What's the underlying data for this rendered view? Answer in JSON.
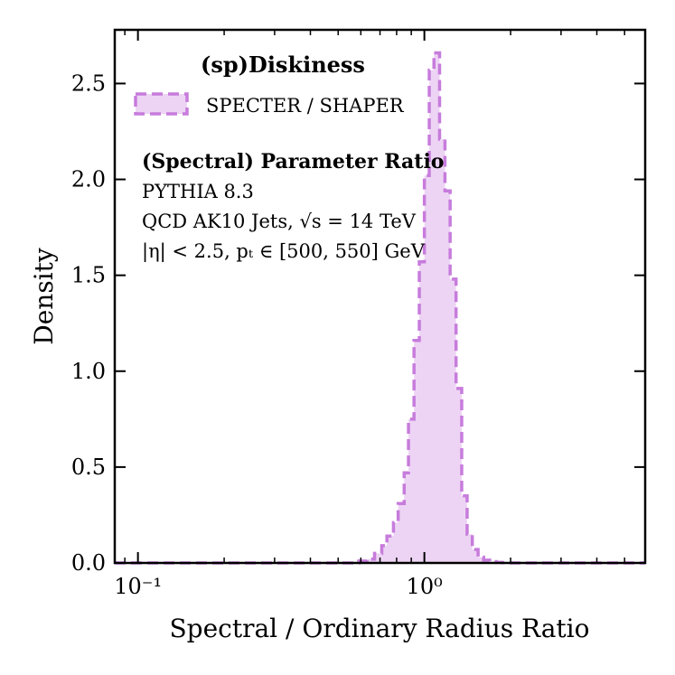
{
  "chart_data": {
    "type": "histogram",
    "xscale": "log",
    "xlim": [
      0.083,
      5.9
    ],
    "ylim": [
      0,
      2.78
    ],
    "xlabel": "Spectral / Ordinary Radius Ratio",
    "ylabel": "Density",
    "xticks": [
      {
        "value": 0.1,
        "label": "10⁻¹"
      },
      {
        "value": 1,
        "label": "10⁰"
      }
    ],
    "yticks": [
      {
        "value": 0.0,
        "label": "0.0"
      },
      {
        "value": 0.5,
        "label": "0.5"
      },
      {
        "value": 1.0,
        "label": "1.0"
      },
      {
        "value": 1.5,
        "label": "1.5"
      },
      {
        "value": 2.0,
        "label": "2.0"
      },
      {
        "value": 2.5,
        "label": "2.5"
      }
    ],
    "legend": {
      "title": "(sp)Diskiness",
      "entries": [
        {
          "label": "SPECTER / SHAPER",
          "color": "#c77cdc",
          "fill": "#edd4f4"
        }
      ]
    },
    "annotations": [
      "(Spectral) Parameter Ratio",
      "PYTHIA 8.3",
      "QCD AK10 Jets, √s = 14 TeV",
      "|η| < 2.5, pₜ ∈ [500, 550] GeV"
    ],
    "series": [
      {
        "name": "SPECTER / SHAPER",
        "color": "#c77cdc",
        "bin_edges": [
          0.083,
          0.59,
          0.63,
          0.67,
          0.71,
          0.74,
          0.78,
          0.81,
          0.85,
          0.88,
          0.92,
          0.96,
          1.0,
          1.04,
          1.08,
          1.13,
          1.18,
          1.23,
          1.29,
          1.35,
          1.41,
          1.47,
          1.54,
          1.61,
          1.69,
          1.78,
          1.87,
          1.97,
          5.9
        ],
        "values": [
          0.0,
          0.01,
          0.02,
          0.05,
          0.09,
          0.14,
          0.21,
          0.31,
          0.47,
          0.75,
          1.16,
          1.57,
          2.02,
          2.57,
          2.66,
          2.21,
          1.94,
          1.48,
          0.91,
          0.35,
          0.15,
          0.07,
          0.03,
          0.015,
          0.007,
          0.003,
          0.001,
          0.0
        ]
      }
    ]
  }
}
